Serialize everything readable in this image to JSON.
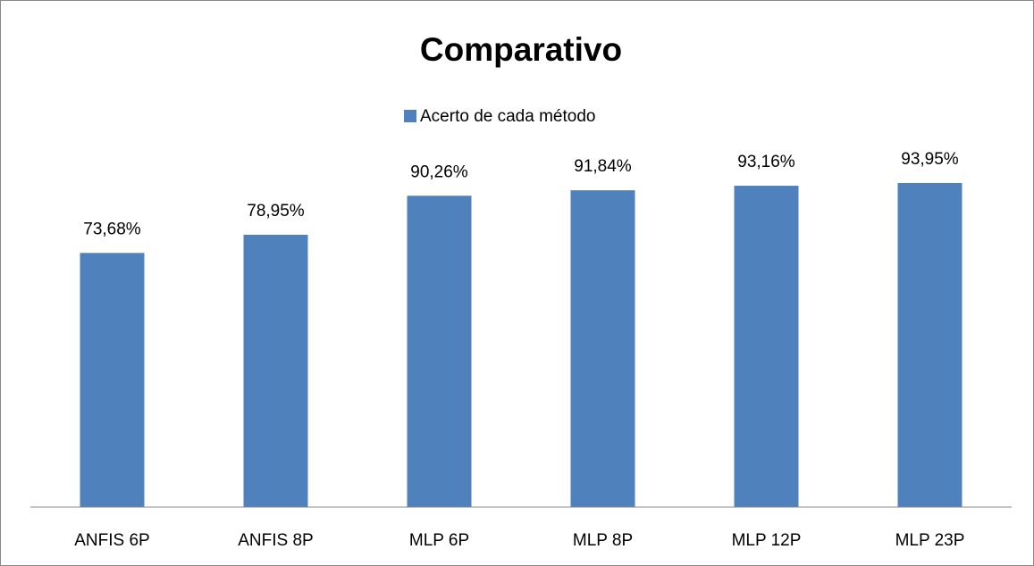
{
  "chart_data": {
    "type": "bar",
    "title": "Comparativo",
    "categories": [
      "ANFIS 6P",
      "ANFIS 8P",
      "MLP 6P",
      "MLP 8P",
      "MLP 12P",
      "MLP 23P"
    ],
    "series": [
      {
        "name": "Acerto de cada método",
        "color": "#4f81bd",
        "values": [
          73.68,
          78.95,
          90.26,
          91.84,
          93.16,
          93.95
        ],
        "value_labels": [
          "73,68%",
          "78,95%",
          "90,26%",
          "91,84%",
          "93,16%",
          "93,95%"
        ]
      }
    ],
    "legend": "top"
  }
}
